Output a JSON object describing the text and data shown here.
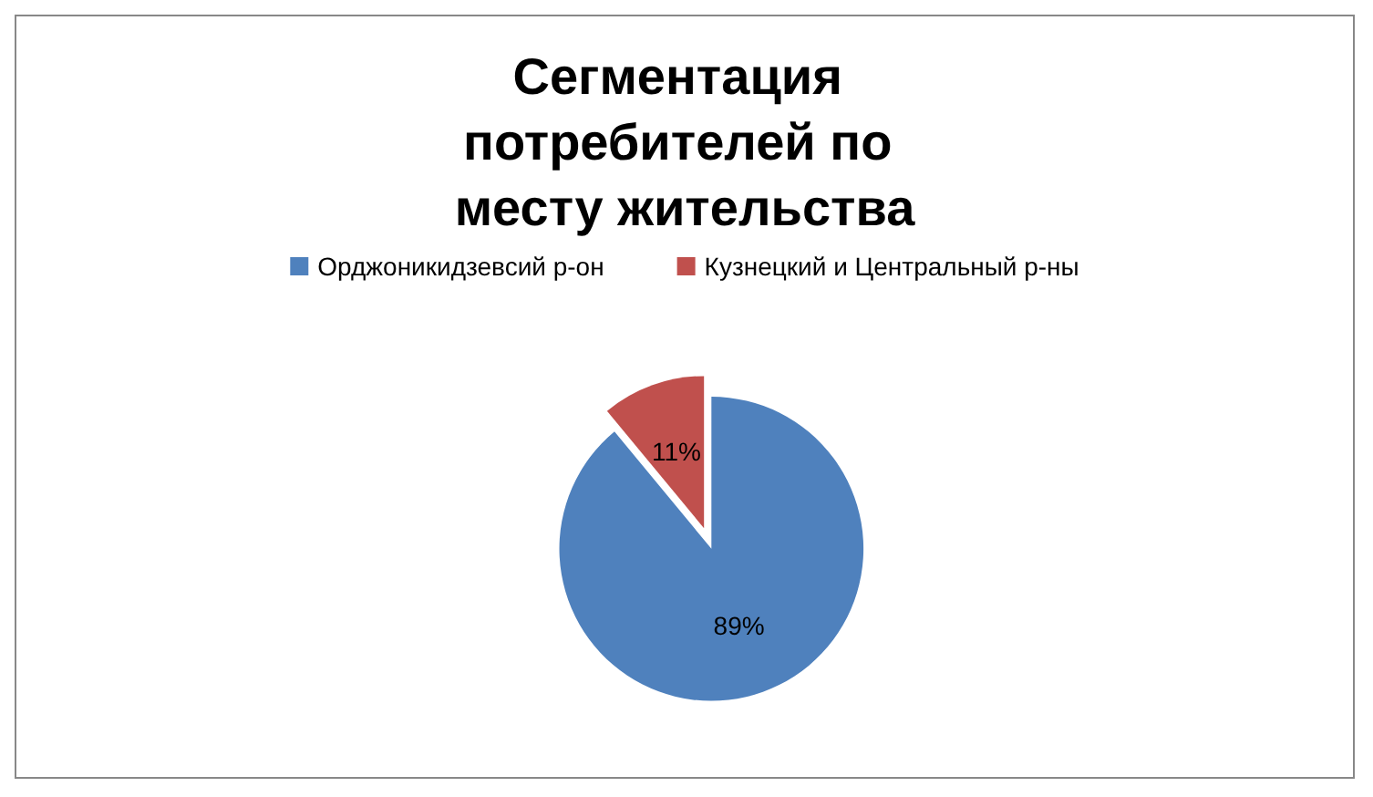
{
  "chart_data": {
    "type": "pie",
    "title": "Сегментация потребителей по месту жительства",
    "categories": [
      "Орджоникидзевсий р-он",
      "Кузнецкий и Центральный р-ны"
    ],
    "values": [
      89,
      11
    ],
    "colors": [
      "#4f81bd",
      "#c0504d"
    ],
    "value_labels": [
      "89%",
      "11%"
    ],
    "legend": "top"
  }
}
